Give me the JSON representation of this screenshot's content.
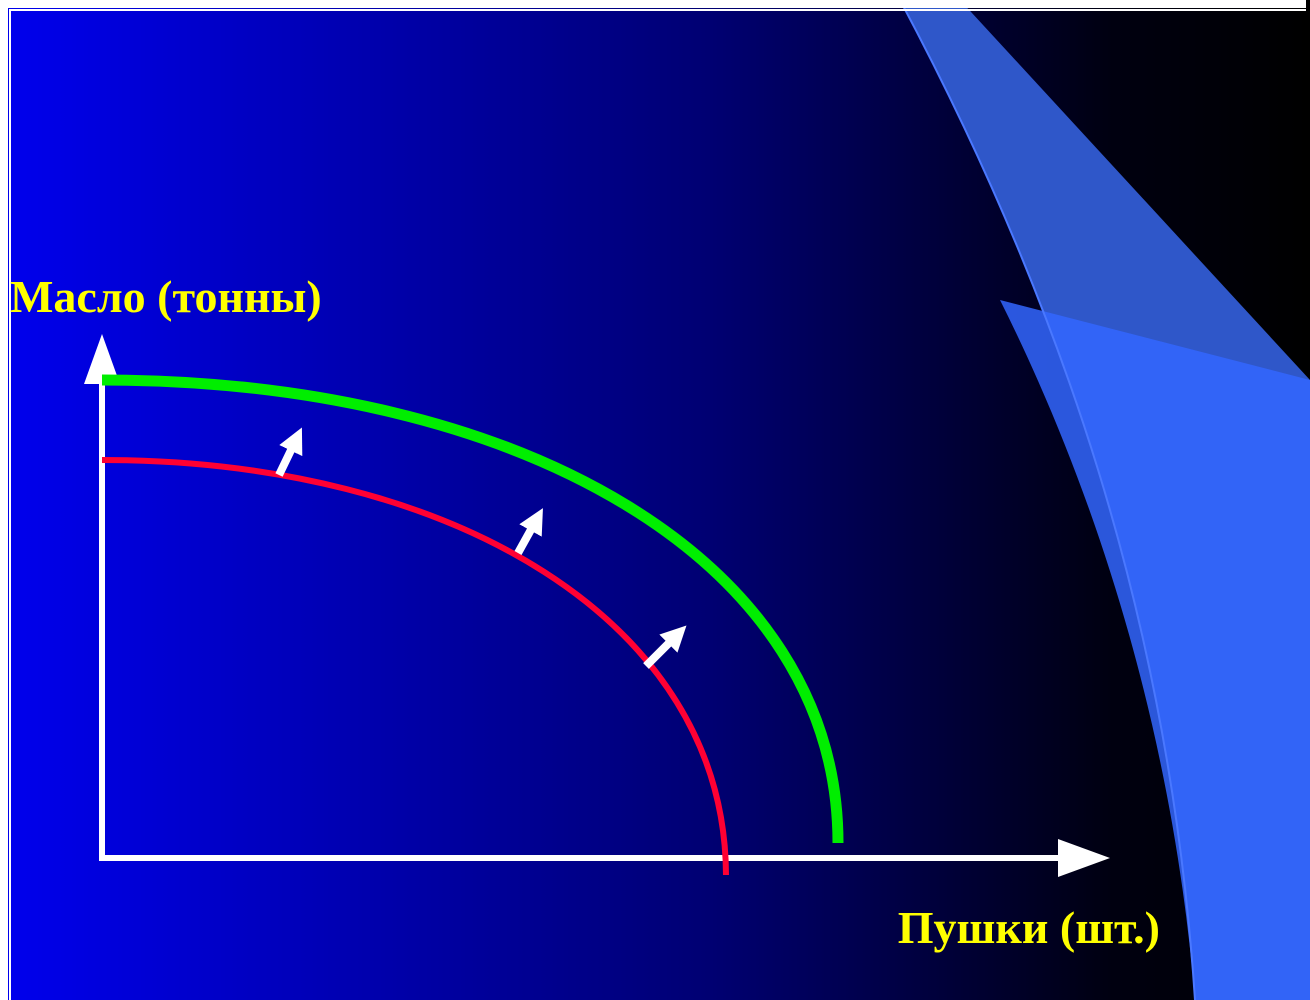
{
  "slide": {
    "colors": {
      "background_left": "#0000ee",
      "background_right": "#000000",
      "frame": "#ffffff",
      "decor_band": "#2f57c9",
      "decor_band_bright": "#3366ff",
      "axis": "#ffffff",
      "label": "#ffff00",
      "original_curve": "#ff0033",
      "shifted_curve": "#00ee00",
      "shift_arrows": "#ffffff"
    }
  },
  "diagram": {
    "y_axis_label": "Масло (тонны)",
    "x_axis_label": "Пушки (шт.)",
    "curves": [
      {
        "id": "original-ppf-curve",
        "color_key": "original_curve"
      },
      {
        "id": "shifted-ppf-curve",
        "color_key": "shifted_curve"
      }
    ],
    "shift_arrow_count": 3,
    "shift_direction": "outward"
  }
}
